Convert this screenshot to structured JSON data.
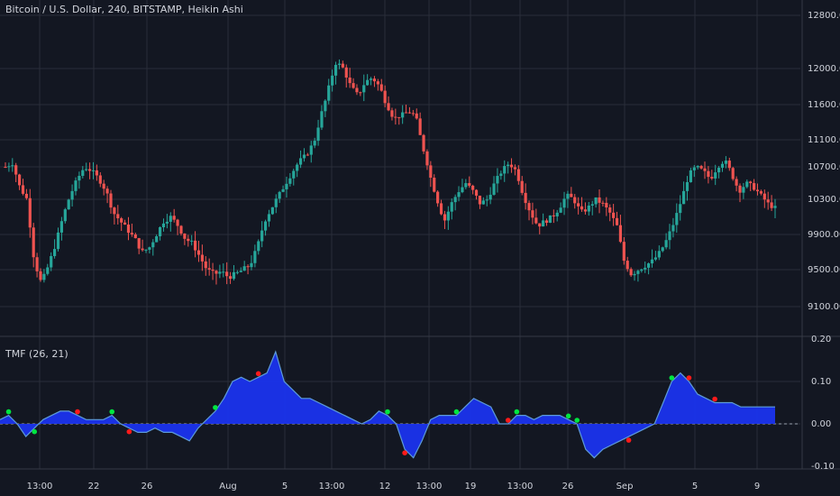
{
  "header": {
    "title": "Bitcoin / U.S. Dollar, 240, BITSTAMP, Heikin Ashi"
  },
  "indicator": {
    "label": "TMF (26, 21)"
  },
  "colors": {
    "background": "#131722",
    "grid": "#2a2e39",
    "text": "#d1d4dc",
    "candle_up": "#26a69a",
    "candle_down": "#ef5350",
    "tmf_fill": "#1a33ee",
    "tmf_line": "#5d9bd8",
    "signal_buy": "#00e640",
    "signal_sell": "#ff1a1a"
  },
  "chart_data": [
    {
      "type": "candlestick",
      "title": "Bitcoin / U.S. Dollar, 240, BITSTAMP, Heikin Ashi",
      "yticks": [
        "12800.00",
        "12000.00",
        "11600.00",
        "11100.00",
        "10700.00",
        "10300.00",
        "9900.00",
        "9500.00",
        "9100.00"
      ],
      "ytick_values": [
        12800,
        12000,
        11600,
        11100,
        10700,
        10300,
        9900,
        9500,
        9100
      ],
      "xticks": [
        "13:00",
        "22",
        "26",
        "Aug",
        "5",
        "13:00",
        "12",
        "13:00",
        "19",
        "13:00",
        "26",
        "Sep",
        "5",
        "9"
      ],
      "grid": true,
      "price_path": {
        "note_points": "approximate Heikin Ashi close path read from chart",
        "values": [
          10700,
          10750,
          10450,
          10300,
          9600,
          9350,
          9550,
          9800,
          10100,
          10350,
          10550,
          10700,
          10650,
          10550,
          10400,
          10150,
          10050,
          9950,
          9850,
          9700,
          9750,
          9900,
          10050,
          10100,
          10000,
          9850,
          9800,
          9650,
          9500,
          9450,
          9480,
          9420,
          9450,
          9500,
          9550,
          9750,
          10050,
          10200,
          10350,
          10500,
          10650,
          10800,
          10900,
          11100,
          11500,
          11800,
          12100,
          12000,
          11800,
          11700,
          11850,
          11900,
          11800,
          11600,
          11400,
          11450,
          11500,
          11450,
          11000,
          10600,
          10300,
          10050,
          10250,
          10400,
          10500,
          10400,
          10250,
          10300,
          10500,
          10650,
          10750,
          10650,
          10350,
          10150,
          10000,
          10050,
          10100,
          10200,
          10350,
          10300,
          10150,
          10200,
          10300,
          10250,
          10150,
          10000,
          9600,
          9450,
          9500,
          9550,
          9600,
          9700,
          9850,
          10050,
          10300,
          10600,
          10700,
          10650,
          10550,
          10700,
          10800,
          10600,
          10400,
          10500,
          10450,
          10350,
          10250,
          10200
        ]
      }
    },
    {
      "type": "area",
      "title": "TMF (26, 21)",
      "yticks": [
        "0.20",
        "0.10",
        "0.00",
        "-0.10"
      ],
      "ytick_values": [
        0.2,
        0.1,
        0.0,
        -0.1
      ],
      "zero_line": true,
      "series": [
        {
          "values": [
            0.01,
            0.02,
            0.0,
            -0.03,
            -0.01,
            0.01,
            0.02,
            0.03,
            0.03,
            0.02,
            0.01,
            0.01,
            0.01,
            0.02,
            0.0,
            -0.01,
            -0.02,
            -0.02,
            -0.01,
            -0.02,
            -0.02,
            -0.03,
            -0.04,
            -0.01,
            0.01,
            0.03,
            0.06,
            0.1,
            0.11,
            0.1,
            0.11,
            0.12,
            0.17,
            0.1,
            0.08,
            0.06,
            0.06,
            0.05,
            0.04,
            0.03,
            0.02,
            0.01,
            0.0,
            0.01,
            0.03,
            0.02,
            0.0,
            -0.06,
            -0.08,
            -0.04,
            0.01,
            0.02,
            0.02,
            0.02,
            0.04,
            0.06,
            0.05,
            0.04,
            0.0,
            0.0,
            0.02,
            0.02,
            0.01,
            0.02,
            0.02,
            0.02,
            0.01,
            0.0,
            -0.06,
            -0.08,
            -0.06,
            -0.05,
            -0.04,
            -0.03,
            -0.02,
            -0.01,
            0.0,
            0.05,
            0.1,
            0.12,
            0.1,
            0.07,
            0.06,
            0.05,
            0.05,
            0.05,
            0.04,
            0.04,
            0.04,
            0.04,
            0.04
          ]
        }
      ],
      "signals": {
        "buy_count": 10,
        "sell_count": 8
      }
    }
  ]
}
